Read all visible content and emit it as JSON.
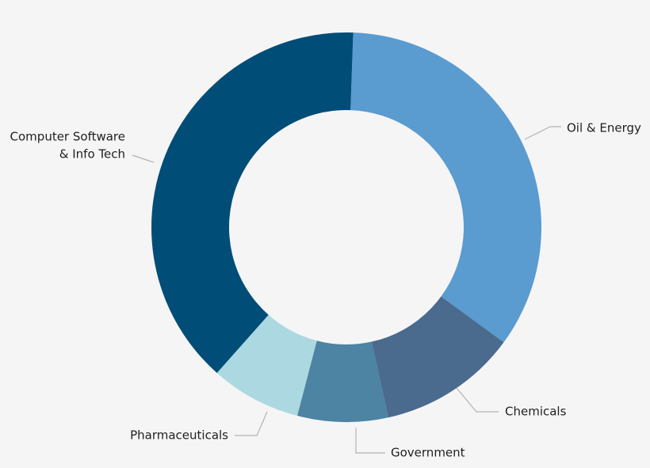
{
  "chart_data": {
    "type": "pie",
    "variant": "donut",
    "legend": "none",
    "slices": [
      {
        "label": [
          "Oil & Energy"
        ],
        "value": 34.5,
        "color": "#5a9bd0"
      },
      {
        "label": [
          "Chemicals"
        ],
        "value": 11.5,
        "color": "#4a6a8e"
      },
      {
        "label": [
          "Government"
        ],
        "value": 7.5,
        "color": "#4d83a3"
      },
      {
        "label": [
          "Pharmaceuticals"
        ],
        "value": 7.5,
        "color": "#acd8e1"
      },
      {
        "label": [
          "Computer Software",
          "& Info Tech"
        ],
        "value": 39.0,
        "color": "#004d77"
      }
    ]
  }
}
